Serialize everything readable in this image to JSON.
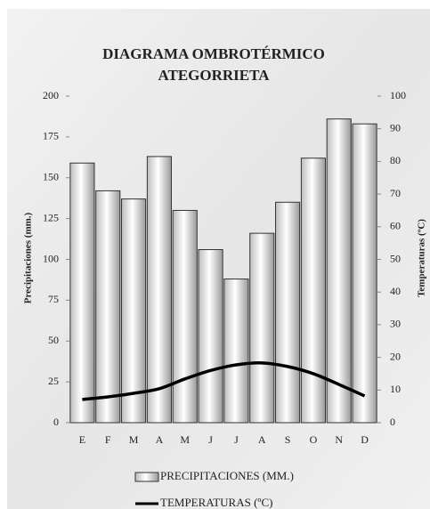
{
  "chart_data": {
    "type": "bar",
    "title": "DIAGRAMA OMBROTÉRMICO",
    "subtitle": "ATEGORRIETA",
    "y_label": "Precipitaciones (mm.)",
    "y2_label": "Temperaturas (ºC)",
    "categories": [
      "E",
      "F",
      "M",
      "A",
      "M",
      "J",
      "J",
      "A",
      "S",
      "O",
      "N",
      "D"
    ],
    "series": [
      {
        "name": "PRECIPITACIONES (MM.)",
        "type": "bar",
        "color": "#ffffff",
        "values": [
          159,
          142,
          137,
          163,
          130,
          106,
          88,
          116,
          135,
          162,
          186,
          183
        ]
      },
      {
        "name": "TEMPERATURAS (ºC)",
        "type": "line",
        "color": "#000000",
        "axis": "y2",
        "values": [
          7.1,
          7.9,
          9,
          10.4,
          13.4,
          16,
          17.7,
          18.3,
          17.2,
          15,
          11.7,
          8.2
        ]
      }
    ],
    "ylim": [
      0,
      200
    ],
    "yticks": [
      0,
      25,
      50,
      75,
      100,
      125,
      150,
      175,
      200
    ],
    "y2lim": [
      0,
      100
    ],
    "y2ticks": [
      0,
      10,
      20,
      30,
      40,
      50,
      60,
      70,
      80,
      90,
      100
    ],
    "legend": "bottom"
  }
}
